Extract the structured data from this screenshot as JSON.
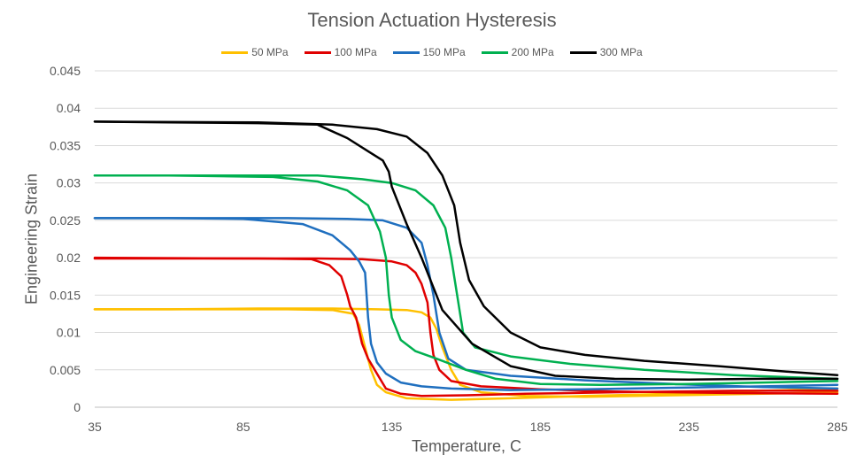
{
  "chart_data": {
    "type": "line",
    "title": "Tension Actuation Hysteresis",
    "xlabel": "Temperature, C",
    "ylabel": "Engineering Strain",
    "xlim": [
      35,
      285
    ],
    "ylim": [
      0,
      0.045
    ],
    "x_ticks": [
      35,
      85,
      135,
      185,
      235,
      285
    ],
    "x_tick_labels": [
      "35",
      "85",
      "135",
      "185",
      "235",
      "285"
    ],
    "y_ticks": [
      0,
      0.005,
      0.01,
      0.015,
      0.02,
      0.025,
      0.03,
      0.035,
      0.04,
      0.045
    ],
    "y_tick_labels": [
      "0",
      "0.005",
      "0.01",
      "0.015",
      "0.02",
      "0.025",
      "0.03",
      "0.035",
      "0.04",
      "0.045"
    ],
    "grid": true,
    "legend_position": "top",
    "series": [
      {
        "name": "50 MPa",
        "color": "#FFC000",
        "heating": [
          [
            35,
            0.0131
          ],
          [
            60,
            0.0131
          ],
          [
            90,
            0.0132
          ],
          [
            115,
            0.0132
          ],
          [
            130,
            0.0131
          ],
          [
            140,
            0.013
          ],
          [
            145,
            0.0127
          ],
          [
            148,
            0.012
          ],
          [
            150,
            0.0105
          ],
          [
            152,
            0.008
          ],
          [
            155,
            0.005
          ],
          [
            158,
            0.003
          ],
          [
            165,
            0.002
          ],
          [
            180,
            0.0015
          ],
          [
            200,
            0.0014
          ],
          [
            230,
            0.0016
          ],
          [
            260,
            0.0018
          ],
          [
            285,
            0.002
          ]
        ],
        "cooling": [
          [
            285,
            0.0025
          ],
          [
            260,
            0.0022
          ],
          [
            230,
            0.0018
          ],
          [
            200,
            0.0015
          ],
          [
            175,
            0.0012
          ],
          [
            155,
            0.001
          ],
          [
            140,
            0.0012
          ],
          [
            133,
            0.002
          ],
          [
            130,
            0.003
          ],
          [
            128,
            0.005
          ],
          [
            126,
            0.008
          ],
          [
            124,
            0.011
          ],
          [
            122,
            0.0125
          ],
          [
            115,
            0.013
          ],
          [
            100,
            0.0131
          ],
          [
            60,
            0.0131
          ],
          [
            35,
            0.0131
          ]
        ]
      },
      {
        "name": "100 MPa",
        "color": "#E00000",
        "heating": [
          [
            35,
            0.0199
          ],
          [
            80,
            0.0199
          ],
          [
            110,
            0.0199
          ],
          [
            125,
            0.0198
          ],
          [
            135,
            0.0195
          ],
          [
            140,
            0.019
          ],
          [
            143,
            0.018
          ],
          [
            145,
            0.0165
          ],
          [
            147,
            0.014
          ],
          [
            148,
            0.01
          ],
          [
            149,
            0.007
          ],
          [
            151,
            0.005
          ],
          [
            155,
            0.0035
          ],
          [
            165,
            0.0028
          ],
          [
            185,
            0.0024
          ],
          [
            210,
            0.0021
          ],
          [
            250,
            0.0019
          ],
          [
            285,
            0.0018
          ]
        ],
        "cooling": [
          [
            285,
            0.0022
          ],
          [
            250,
            0.0022
          ],
          [
            210,
            0.002
          ],
          [
            180,
            0.0018
          ],
          [
            160,
            0.0016
          ],
          [
            145,
            0.0015
          ],
          [
            138,
            0.0018
          ],
          [
            133,
            0.0025
          ],
          [
            130,
            0.0045
          ],
          [
            127,
            0.0065
          ],
          [
            125,
            0.0085
          ],
          [
            123,
            0.012
          ],
          [
            121,
            0.0135
          ],
          [
            120,
            0.015
          ],
          [
            118,
            0.0175
          ],
          [
            114,
            0.019
          ],
          [
            108,
            0.0198
          ],
          [
            90,
            0.0199
          ],
          [
            35,
            0.02
          ]
        ]
      },
      {
        "name": "150 MPa",
        "color": "#1F6FBF",
        "heating": [
          [
            35,
            0.0253
          ],
          [
            70,
            0.0253
          ],
          [
            100,
            0.0253
          ],
          [
            120,
            0.0252
          ],
          [
            132,
            0.025
          ],
          [
            140,
            0.024
          ],
          [
            145,
            0.022
          ],
          [
            147,
            0.019
          ],
          [
            149,
            0.015
          ],
          [
            151,
            0.01
          ],
          [
            154,
            0.0065
          ],
          [
            160,
            0.005
          ],
          [
            175,
            0.0042
          ],
          [
            200,
            0.0036
          ],
          [
            230,
            0.0031
          ],
          [
            260,
            0.0027
          ],
          [
            285,
            0.0025
          ]
        ],
        "cooling": [
          [
            285,
            0.003
          ],
          [
            260,
            0.0028
          ],
          [
            230,
            0.0026
          ],
          [
            200,
            0.0024
          ],
          [
            175,
            0.0023
          ],
          [
            155,
            0.0025
          ],
          [
            145,
            0.0028
          ],
          [
            138,
            0.0033
          ],
          [
            133,
            0.0045
          ],
          [
            130,
            0.006
          ],
          [
            128,
            0.0085
          ],
          [
            127,
            0.012
          ],
          [
            126,
            0.018
          ],
          [
            124,
            0.0195
          ],
          [
            121,
            0.021
          ],
          [
            115,
            0.023
          ],
          [
            105,
            0.0245
          ],
          [
            85,
            0.0252
          ],
          [
            60,
            0.0253
          ],
          [
            35,
            0.0253
          ]
        ]
      },
      {
        "name": "200 MPa",
        "color": "#00B050",
        "heating": [
          [
            35,
            0.031
          ],
          [
            80,
            0.031
          ],
          [
            110,
            0.031
          ],
          [
            125,
            0.0305
          ],
          [
            135,
            0.03
          ],
          [
            143,
            0.029
          ],
          [
            149,
            0.027
          ],
          [
            153,
            0.024
          ],
          [
            155,
            0.02
          ],
          [
            157,
            0.015
          ],
          [
            159,
            0.01
          ],
          [
            163,
            0.008
          ],
          [
            175,
            0.0068
          ],
          [
            195,
            0.0058
          ],
          [
            220,
            0.005
          ],
          [
            250,
            0.0043
          ],
          [
            270,
            0.004
          ],
          [
            285,
            0.0038
          ]
        ],
        "cooling": [
          [
            285,
            0.0035
          ],
          [
            260,
            0.0033
          ],
          [
            235,
            0.0031
          ],
          [
            205,
            0.003
          ],
          [
            185,
            0.0031
          ],
          [
            170,
            0.0038
          ],
          [
            160,
            0.005
          ],
          [
            150,
            0.0065
          ],
          [
            143,
            0.0075
          ],
          [
            138,
            0.009
          ],
          [
            135,
            0.012
          ],
          [
            134,
            0.015
          ],
          [
            133,
            0.02
          ],
          [
            131,
            0.0235
          ],
          [
            127,
            0.027
          ],
          [
            120,
            0.029
          ],
          [
            110,
            0.0302
          ],
          [
            95,
            0.0308
          ],
          [
            60,
            0.031
          ],
          [
            35,
            0.031
          ]
        ]
      },
      {
        "name": "300 MPa",
        "color": "#000000",
        "heating": [
          [
            35,
            0.0382
          ],
          [
            90,
            0.0381
          ],
          [
            115,
            0.0378
          ],
          [
            130,
            0.0372
          ],
          [
            140,
            0.0362
          ],
          [
            147,
            0.034
          ],
          [
            152,
            0.031
          ],
          [
            156,
            0.027
          ],
          [
            158,
            0.022
          ],
          [
            161,
            0.017
          ],
          [
            166,
            0.0135
          ],
          [
            175,
            0.01
          ],
          [
            185,
            0.008
          ],
          [
            200,
            0.007
          ],
          [
            220,
            0.0062
          ],
          [
            245,
            0.0055
          ],
          [
            270,
            0.0047
          ],
          [
            285,
            0.0043
          ]
        ],
        "cooling": [
          [
            285,
            0.0038
          ],
          [
            260,
            0.0038
          ],
          [
            235,
            0.0037
          ],
          [
            210,
            0.0038
          ],
          [
            190,
            0.0042
          ],
          [
            175,
            0.0055
          ],
          [
            162,
            0.0085
          ],
          [
            152,
            0.013
          ],
          [
            145,
            0.02
          ],
          [
            140,
            0.0245
          ],
          [
            137,
            0.0275
          ],
          [
            135,
            0.0295
          ],
          [
            134,
            0.0315
          ],
          [
            132,
            0.033
          ],
          [
            128,
            0.034
          ],
          [
            120,
            0.036
          ],
          [
            110,
            0.0378
          ],
          [
            90,
            0.038
          ],
          [
            60,
            0.0381
          ],
          [
            35,
            0.0382
          ]
        ]
      }
    ]
  }
}
